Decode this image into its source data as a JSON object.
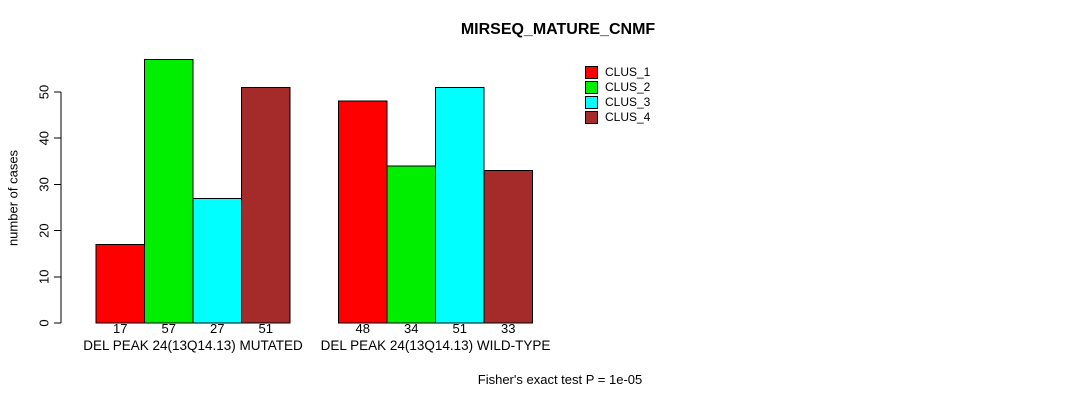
{
  "chart_data": {
    "type": "bar",
    "title": "MIRSEQ_MATURE_CNMF",
    "ylabel": "number of cases",
    "ylim": [
      0,
      57
    ],
    "yticks": [
      0,
      10,
      20,
      30,
      40,
      50
    ],
    "grid": false,
    "legend_position": "top-right",
    "categories": [
      "DEL PEAK 24(13Q14.13) MUTATED",
      "DEL PEAK 24(13Q14.13) WILD-TYPE"
    ],
    "series": [
      {
        "name": "CLUS_1",
        "color": "#FF0000",
        "values": [
          17,
          48
        ]
      },
      {
        "name": "CLUS_2",
        "color": "#00EE00",
        "values": [
          57,
          34
        ]
      },
      {
        "name": "CLUS_3",
        "color": "#00FFFF",
        "values": [
          27,
          51
        ]
      },
      {
        "name": "CLUS_4",
        "color": "#A52A2A",
        "values": [
          51,
          33
        ]
      }
    ],
    "bar_border_color": "#000000",
    "axis_color": "#000000",
    "annotation": "Fisher's exact test P = 1e-05"
  }
}
